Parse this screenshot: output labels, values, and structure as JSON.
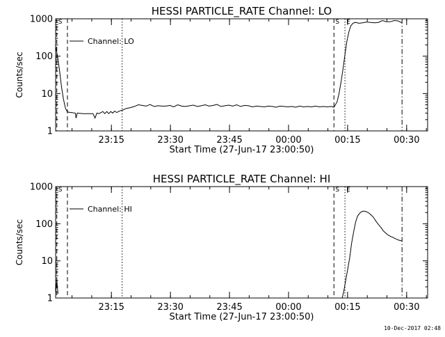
{
  "footer": {
    "timestamp": "10-Dec-2017 02:48"
  },
  "chart_data": [
    {
      "type": "line",
      "title": "HESSI PARTICLE_RATE Channel: LO",
      "xlabel": "Start Time (27-Jun-17 23:00:50)",
      "ylabel": "Counts/sec",
      "y_scale": "log",
      "ylim": [
        1,
        1000
      ],
      "y_ticks": [
        "1",
        "10",
        "100",
        "1000"
      ],
      "x_ticks": [
        "23:15",
        "23:30",
        "23:45",
        "00:00",
        "00:15",
        "00:30"
      ],
      "x_tick_minutes": [
        14.17,
        29.17,
        44.17,
        59.17,
        74.17,
        89.17
      ],
      "xlim_minutes": [
        0,
        94.5
      ],
      "legend": {
        "label": "Channel: LO",
        "position": "top-left"
      },
      "markers": [
        {
          "label": "S",
          "minutes": 0.3,
          "style": "dash"
        },
        {
          "label": "",
          "minutes": 3.0,
          "style": "dash"
        },
        {
          "label": "",
          "minutes": 16.9,
          "style": "dot"
        },
        {
          "label": "S",
          "minutes": 70.7,
          "style": "dash"
        },
        {
          "label": "E",
          "minutes": 73.5,
          "style": "dot"
        },
        {
          "label": "",
          "minutes": 88.0,
          "style": "dashdot"
        }
      ],
      "series": [
        {
          "x": [
            0,
            0.5,
            1,
            1.5,
            2,
            2.5,
            3,
            5,
            5.2,
            5.5,
            7,
            9.5,
            10,
            10.5,
            11,
            12,
            12.5,
            13,
            13.5,
            14,
            14.5,
            15,
            15.5,
            16,
            16.5,
            17,
            18,
            19,
            20,
            21,
            22,
            23,
            24,
            25,
            26,
            27,
            28,
            29,
            30,
            31,
            32,
            33,
            34,
            35,
            36,
            37,
            38,
            39,
            40,
            41,
            42,
            43,
            44,
            45,
            46,
            47,
            48,
            49,
            50,
            51,
            52,
            53,
            54,
            55,
            56,
            57,
            58,
            59,
            60,
            61,
            62,
            63,
            64,
            65,
            66,
            67,
            68,
            69,
            70,
            70.7,
            71.5,
            72,
            72.5,
            73,
            73.5,
            74,
            74.5,
            75,
            75.5,
            76,
            76.5,
            77,
            77.5,
            78,
            79,
            80,
            81,
            82,
            83,
            84,
            85,
            86,
            87,
            88
          ],
          "y": [
            180,
            100,
            40,
            15,
            7,
            4,
            3.2,
            3.0,
            2.2,
            3.0,
            2.9,
            2.9,
            2.2,
            3.0,
            2.9,
            3.3,
            2.9,
            3.3,
            2.9,
            3.3,
            3.0,
            3.4,
            3.1,
            3.3,
            3.5,
            3.6,
            4.0,
            4.2,
            4.5,
            5.0,
            4.8,
            4.6,
            5.1,
            4.5,
            4.7,
            4.6,
            4.6,
            4.8,
            4.4,
            5.0,
            4.6,
            4.5,
            4.7,
            4.9,
            4.5,
            4.7,
            5.0,
            4.6,
            4.8,
            5.1,
            4.5,
            4.7,
            4.9,
            4.6,
            5.0,
            4.5,
            4.8,
            4.7,
            4.4,
            4.6,
            4.5,
            4.4,
            4.6,
            4.5,
            4.3,
            4.6,
            4.5,
            4.4,
            4.5,
            4.3,
            4.6,
            4.4,
            4.5,
            4.4,
            4.6,
            4.4,
            4.5,
            4.4,
            4.5,
            4.3,
            6,
            10,
            20,
            45,
            110,
            250,
            450,
            650,
            750,
            800,
            790,
            760,
            770,
            780,
            820,
            800,
            780,
            800,
            900,
            840,
            830,
            900,
            880,
            780
          ]
        }
      ]
    },
    {
      "type": "line",
      "title": "HESSI PARTICLE_RATE Channel: HI",
      "xlabel": "Start Time (27-Jun-17 23:00:50)",
      "ylabel": "Counts/sec",
      "y_scale": "log",
      "ylim": [
        1,
        1000
      ],
      "y_ticks": [
        "1",
        "10",
        "100",
        "1000"
      ],
      "x_ticks": [
        "23:15",
        "23:30",
        "23:45",
        "00:00",
        "00:15",
        "00:30"
      ],
      "x_tick_minutes": [
        14.17,
        29.17,
        44.17,
        59.17,
        74.17,
        89.17
      ],
      "xlim_minutes": [
        0,
        94.5
      ],
      "legend": {
        "label": "Channel: HI",
        "position": "top-left"
      },
      "markers": [
        {
          "label": "S",
          "minutes": 0.3,
          "style": "dash"
        },
        {
          "label": "",
          "minutes": 3.0,
          "style": "dash"
        },
        {
          "label": "",
          "minutes": 16.9,
          "style": "dot"
        },
        {
          "label": "S",
          "minutes": 70.7,
          "style": "dash"
        },
        {
          "label": "E",
          "minutes": 73.5,
          "style": "dot"
        },
        {
          "label": "",
          "minutes": 88.0,
          "style": "dashdot"
        }
      ],
      "series": [
        {
          "x": [
            0,
            0.3,
            0.6
          ],
          "y": [
            1.3,
            3.0,
            1.3
          ]
        },
        {
          "x": [
            72.8,
            73.2,
            73.7,
            74.2,
            74.7,
            75.2,
            75.7,
            76.2,
            76.7,
            77.2,
            77.7,
            78.2,
            78.7,
            79.2,
            79.7,
            80.2,
            80.7,
            81.2,
            81.7,
            82.2,
            82.7,
            83.2,
            83.7,
            84.2,
            84.7,
            85.2,
            85.7,
            86.2,
            86.7,
            87.2,
            87.7,
            88.0
          ],
          "y": [
            1.0,
            1.5,
            3.0,
            6.0,
            12,
            30,
            60,
            110,
            160,
            190,
            210,
            220,
            215,
            205,
            190,
            170,
            150,
            125,
            105,
            90,
            78,
            65,
            58,
            52,
            48,
            45,
            43,
            40,
            38,
            36,
            35,
            34
          ]
        }
      ]
    }
  ]
}
